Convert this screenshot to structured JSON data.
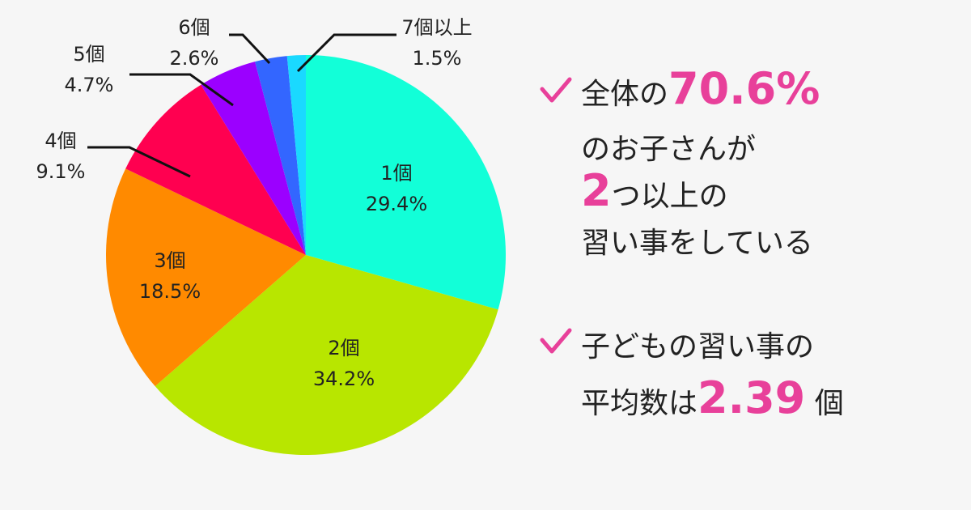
{
  "chart_data": {
    "type": "pie",
    "categories": [
      "1個",
      "2個",
      "3個",
      "4個",
      "5個",
      "6個",
      "7個以上"
    ],
    "values": [
      29.4,
      34.2,
      18.5,
      9.1,
      4.7,
      2.6,
      1.5
    ],
    "value_labels": [
      "29.4%",
      "34.2%",
      "18.5%",
      "9.1%",
      "4.7%",
      "2.6%",
      "1.5%"
    ],
    "colors": [
      "#12ffd8",
      "#b8e600",
      "#ff8a00",
      "#ff0050",
      "#9b00ff",
      "#3366ff",
      "#1ad9ff"
    ]
  },
  "notes": [
    {
      "lines": [
        [
          {
            "text": "全体の"
          },
          {
            "text": "70.6%",
            "color": "#e8409a"
          }
        ],
        [
          {
            "text": "のお子さんが"
          }
        ],
        [
          {
            "text": "2",
            "color": "#e8409a"
          },
          {
            "text": "つ以上の"
          }
        ],
        [
          {
            "text": "習い事をしている"
          }
        ]
      ]
    },
    {
      "lines": [
        [
          {
            "text": "子どもの習い事の"
          }
        ],
        [
          {
            "text": "平均数は"
          },
          {
            "text": "2.39",
            "color": "#e8409a"
          },
          {
            "text": " 個"
          }
        ]
      ]
    }
  ]
}
